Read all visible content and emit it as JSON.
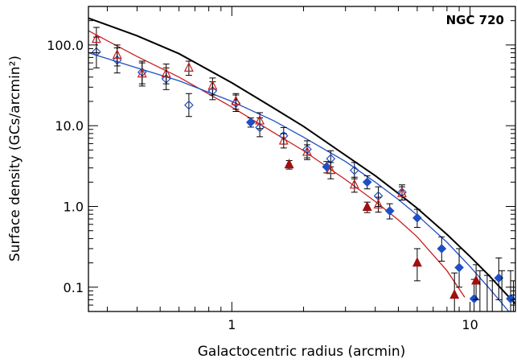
{
  "chart_data": {
    "type": "scatter",
    "title": "",
    "xlabel": "Galactocentric radius (arcmin)",
    "ylabel": "Surface density (GCs/arcmin²)",
    "annotation": "NGC 720",
    "xscale": "log",
    "yscale": "log",
    "xlim": [
      0.25,
      15.5
    ],
    "ylim": [
      0.05,
      300
    ],
    "x_ticks": [
      1,
      10
    ],
    "x_tick_labels": [
      "1",
      "10"
    ],
    "y_ticks": [
      0.1,
      1,
      10,
      100
    ],
    "y_tick_labels": [
      "0.1",
      "1.0",
      "10.0",
      "100.0"
    ],
    "grid": false,
    "legend": "none",
    "colors": {
      "black": "#000000",
      "blue": "#1f4fc4",
      "red": "#c81e1e",
      "darkred": "#a01010",
      "errorbar": "#000000"
    },
    "series": [
      {
        "marker": "open-diamond",
        "color": "#1f4fc4",
        "points": [
          {
            "x": 0.27,
            "y": 82,
            "ylo": 52,
            "yhi": 125
          },
          {
            "x": 0.33,
            "y": 65,
            "ylo": 45,
            "yhi": 92
          },
          {
            "x": 0.42,
            "y": 46,
            "ylo": 33,
            "yhi": 63
          },
          {
            "x": 0.53,
            "y": 38,
            "ylo": 28,
            "yhi": 52
          },
          {
            "x": 0.66,
            "y": 18,
            "ylo": 13,
            "yhi": 25
          },
          {
            "x": 0.83,
            "y": 27,
            "ylo": 21,
            "yhi": 35
          },
          {
            "x": 1.04,
            "y": 19,
            "ylo": 15,
            "yhi": 24
          },
          {
            "x": 1.31,
            "y": 9.5,
            "ylo": 7.3,
            "yhi": 12.5
          },
          {
            "x": 1.65,
            "y": 7.5,
            "ylo": 5.9,
            "yhi": 9.5
          },
          {
            "x": 2.07,
            "y": 5.1,
            "ylo": 4.0,
            "yhi": 6.5
          },
          {
            "x": 2.6,
            "y": 3.9,
            "ylo": 3.1,
            "yhi": 4.9
          },
          {
            "x": 3.27,
            "y": 2.8,
            "ylo": 2.2,
            "yhi": 3.5
          },
          {
            "x": 4.12,
            "y": 1.35,
            "ylo": 1.0,
            "yhi": 1.75
          },
          {
            "x": 5.18,
            "y": 1.5,
            "ylo": 1.2,
            "yhi": 1.85
          }
        ]
      },
      {
        "marker": "filled-diamond",
        "color": "#1f4fc4",
        "points": [
          {
            "x": 1.2,
            "y": 11,
            "ylo": 9.6,
            "yhi": 12.5
          },
          {
            "x": 2.5,
            "y": 3.1,
            "ylo": 2.6,
            "yhi": 3.6
          },
          {
            "x": 3.7,
            "y": 2.0,
            "ylo": 1.65,
            "yhi": 2.4
          },
          {
            "x": 4.6,
            "y": 0.88,
            "ylo": 0.7,
            "yhi": 1.08
          },
          {
            "x": 6.0,
            "y": 0.72,
            "ylo": 0.55,
            "yhi": 0.92
          },
          {
            "x": 7.6,
            "y": 0.3,
            "ylo": 0.21,
            "yhi": 0.42
          },
          {
            "x": 9.0,
            "y": 0.175,
            "ylo": 0.1,
            "yhi": 0.3
          },
          {
            "x": 10.4,
            "y": 0.072,
            "ylo": 0.04,
            "yhi": 0.125
          },
          {
            "x": 13.2,
            "y": 0.13,
            "ylo": 0.07,
            "yhi": 0.23
          },
          {
            "x": 14.8,
            "y": 0.072,
            "ylo": 0.04,
            "yhi": 0.16
          }
        ]
      },
      {
        "marker": "open-triangle",
        "color": "#c81e1e",
        "points": [
          {
            "x": 0.27,
            "y": 118,
            "ylo": 80,
            "yhi": 165
          },
          {
            "x": 0.33,
            "y": 75,
            "ylo": 55,
            "yhi": 100
          },
          {
            "x": 0.42,
            "y": 44,
            "ylo": 31,
            "yhi": 60
          },
          {
            "x": 0.53,
            "y": 44,
            "ylo": 33,
            "yhi": 58
          },
          {
            "x": 0.66,
            "y": 52,
            "ylo": 42,
            "yhi": 63
          },
          {
            "x": 0.83,
            "y": 31,
            "ylo": 24,
            "yhi": 39
          },
          {
            "x": 1.04,
            "y": 20,
            "ylo": 16,
            "yhi": 25
          },
          {
            "x": 1.31,
            "y": 11.5,
            "ylo": 9.2,
            "yhi": 14.5
          },
          {
            "x": 1.65,
            "y": 6.5,
            "ylo": 5.3,
            "yhi": 8.0
          },
          {
            "x": 2.07,
            "y": 4.7,
            "ylo": 3.8,
            "yhi": 5.8
          },
          {
            "x": 2.6,
            "y": 2.8,
            "ylo": 2.2,
            "yhi": 3.5
          },
          {
            "x": 3.27,
            "y": 1.85,
            "ylo": 1.5,
            "yhi": 2.3
          },
          {
            "x": 4.12,
            "y": 1.05,
            "ylo": 0.85,
            "yhi": 1.3
          },
          {
            "x": 5.18,
            "y": 1.45,
            "ylo": 1.2,
            "yhi": 1.75
          }
        ]
      },
      {
        "marker": "filled-triangle",
        "color": "#a01010",
        "points": [
          {
            "x": 1.74,
            "y": 3.3,
            "ylo": 2.9,
            "yhi": 3.7
          },
          {
            "x": 3.7,
            "y": 0.98,
            "ylo": 0.84,
            "yhi": 1.13
          },
          {
            "x": 6.0,
            "y": 0.2,
            "ylo": 0.12,
            "yhi": 0.3
          },
          {
            "x": 8.6,
            "y": 0.08,
            "ylo": 0.04,
            "yhi": 0.15
          },
          {
            "x": 10.6,
            "y": 0.12,
            "ylo": 0.07,
            "yhi": 0.19
          }
        ]
      },
      {
        "marker": "errorbar-only",
        "color": "#000000",
        "points": [
          {
            "x": 11.0,
            "y": 0.1,
            "ylo": 0.05,
            "yhi": 0.16
          },
          {
            "x": 11.8,
            "y": 0.08,
            "ylo": 0.05,
            "yhi": 0.14
          },
          {
            "x": 12.4,
            "y": 0.07,
            "ylo": 0.05,
            "yhi": 0.12
          },
          {
            "x": 13.6,
            "y": 0.09,
            "ylo": 0.05,
            "yhi": 0.16
          },
          {
            "x": 15.2,
            "y": 0.06,
            "ylo": 0.05,
            "yhi": 0.12
          }
        ]
      }
    ],
    "curves": [
      {
        "color": "#000000",
        "x": [
          0.25,
          0.4,
          0.6,
          1.0,
          1.5,
          2.0,
          3.0,
          4.0,
          5.0,
          6.0,
          8.0,
          10.0,
          12.0,
          15.5
        ],
        "y": [
          215,
          130,
          78,
          34,
          16.5,
          9.8,
          4.3,
          2.4,
          1.45,
          0.95,
          0.45,
          0.24,
          0.14,
          0.062
        ]
      },
      {
        "color": "#c81e1e",
        "x": [
          0.25,
          0.4,
          0.6,
          1.0,
          1.5,
          2.0,
          3.0,
          4.0,
          5.0,
          6.0,
          8.0,
          9.5
        ],
        "y": [
          150,
          72,
          40,
          17,
          8.2,
          4.9,
          2.15,
          1.15,
          0.68,
          0.42,
          0.16,
          0.075
        ]
      },
      {
        "color": "#1f4fc4",
        "x": [
          0.25,
          0.4,
          0.6,
          1.0,
          1.5,
          2.0,
          3.0,
          4.0,
          5.0,
          6.0,
          8.0,
          10.0,
          12.0,
          15.5
        ],
        "y": [
          80,
          52,
          36,
          20,
          11.5,
          7.2,
          3.6,
          2.0,
          1.22,
          0.78,
          0.36,
          0.18,
          0.098,
          0.04
        ]
      }
    ]
  }
}
